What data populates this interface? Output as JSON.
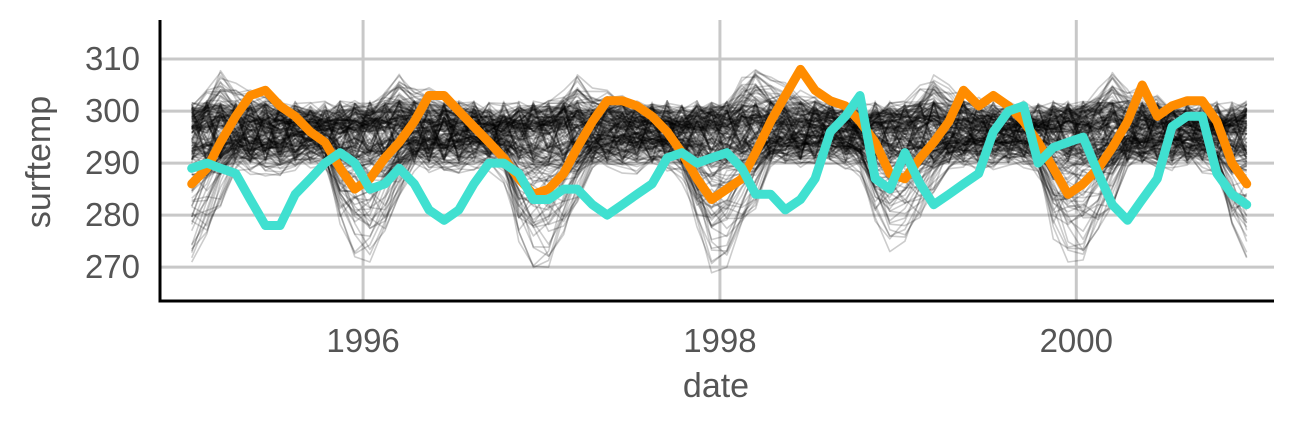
{
  "chart_data": {
    "type": "line",
    "title": "",
    "xlabel": "date",
    "ylabel": "surftemp",
    "xlim": [
      "1994-11-11",
      "2001-02-09"
    ],
    "ylim": [
      263.5,
      317.5
    ],
    "x_ticks": [
      {
        "date": "1996-01-01",
        "label": "1996"
      },
      {
        "date": "1998-01-01",
        "label": "1998"
      },
      {
        "date": "2000-01-01",
        "label": "2000"
      }
    ],
    "y_ticks": [
      {
        "value": 270,
        "label": "270"
      },
      {
        "value": 280,
        "label": "280"
      },
      {
        "value": 290,
        "label": "290"
      },
      {
        "value": 300,
        "label": "300"
      },
      {
        "value": 310,
        "label": "310"
      }
    ],
    "x": [
      "1995-01",
      "1995-02",
      "1995-03",
      "1995-04",
      "1995-05",
      "1995-06",
      "1995-07",
      "1995-08",
      "1995-09",
      "1995-10",
      "1995-11",
      "1995-12",
      "1996-01",
      "1996-02",
      "1996-03",
      "1996-04",
      "1996-05",
      "1996-06",
      "1996-07",
      "1996-08",
      "1996-09",
      "1996-10",
      "1996-11",
      "1996-12",
      "1997-01",
      "1997-02",
      "1997-03",
      "1997-04",
      "1997-05",
      "1997-06",
      "1997-07",
      "1997-08",
      "1997-09",
      "1997-10",
      "1997-11",
      "1997-12",
      "1998-01",
      "1998-02",
      "1998-03",
      "1998-04",
      "1998-05",
      "1998-06",
      "1998-07",
      "1998-08",
      "1998-09",
      "1998-10",
      "1998-11",
      "1998-12",
      "1999-01",
      "1999-02",
      "1999-03",
      "1999-04",
      "1999-05",
      "1999-06",
      "1999-07",
      "1999-08",
      "1999-09",
      "1999-10",
      "1999-11",
      "1999-12",
      "2000-01",
      "2000-02",
      "2000-03",
      "2000-04",
      "2000-05",
      "2000-06",
      "2000-07",
      "2000-08",
      "2000-09",
      "2000-10",
      "2000-11",
      "2000-12"
    ],
    "series": [
      {
        "color": "#ff8c00",
        "values": [
          286,
          289,
          294,
          299,
          303,
          304,
          301,
          299,
          296,
          294,
          289,
          285,
          287,
          291,
          294,
          298,
          303,
          303,
          300,
          297,
          294,
          291,
          287,
          284,
          285,
          288,
          293,
          298,
          302,
          302,
          301,
          299,
          296,
          292,
          287,
          283,
          285,
          287,
          292,
          298,
          303,
          308,
          304,
          302,
          301,
          298,
          294,
          288,
          287,
          291,
          294,
          298,
          304,
          301,
          303,
          301,
          298,
          294,
          289,
          284,
          286,
          289,
          293,
          298,
          305,
          299,
          301,
          302,
          302,
          298,
          290,
          286
        ]
      },
      {
        "color": "#40e0d0",
        "values": [
          289,
          290,
          289,
          288,
          283,
          278,
          278,
          284,
          287,
          290,
          292,
          290,
          285,
          286,
          289,
          286,
          281,
          279,
          281,
          286,
          290,
          290,
          288,
          283,
          283,
          285,
          285,
          282,
          280,
          282,
          284,
          286,
          291,
          292,
          290,
          291,
          292,
          289,
          284,
          284,
          281,
          283,
          287,
          296,
          299,
          303,
          287,
          285,
          292,
          286,
          282,
          284,
          286,
          288,
          296,
          300,
          301,
          290,
          293,
          294,
          295,
          288,
          282,
          279,
          283,
          287,
          297,
          299,
          299,
          288,
          284,
          282
        ]
      }
    ],
    "background_ensemble": {
      "description_note": "",
      "count": 120,
      "envelope_min": [
        270,
        275,
        281,
        284,
        283,
        282,
        282,
        284,
        286,
        283,
        276,
        272,
        271,
        275,
        282,
        284,
        283,
        282,
        283,
        285,
        284,
        280,
        273,
        269,
        270,
        275,
        281,
        284,
        284,
        283,
        284,
        286,
        284,
        280,
        275,
        268,
        270,
        276,
        281,
        285,
        285,
        286,
        286,
        287,
        285,
        281,
        277,
        273,
        275,
        279,
        283,
        284,
        284,
        285,
        285,
        286,
        285,
        280,
        274,
        271,
        271,
        276,
        280,
        284,
        284,
        285,
        285,
        286,
        284,
        280,
        275,
        271
      ],
      "envelope_max": [
        302,
        305,
        308,
        311,
        310,
        309,
        307,
        305,
        303,
        301,
        301,
        302,
        302,
        305,
        308,
        311,
        310,
        308,
        306,
        304,
        302,
        301,
        301,
        302,
        302,
        304,
        307,
        310,
        311,
        308,
        306,
        305,
        303,
        302,
        301,
        302,
        303,
        307,
        310,
        314,
        312,
        310,
        308,
        306,
        304,
        302,
        301,
        302,
        302,
        305,
        308,
        310,
        309,
        307,
        305,
        304,
        302,
        301,
        301,
        302,
        303,
        305,
        308,
        311,
        310,
        308,
        306,
        304,
        302,
        301,
        301,
        302
      ]
    },
    "grid": true,
    "legend": "none"
  }
}
